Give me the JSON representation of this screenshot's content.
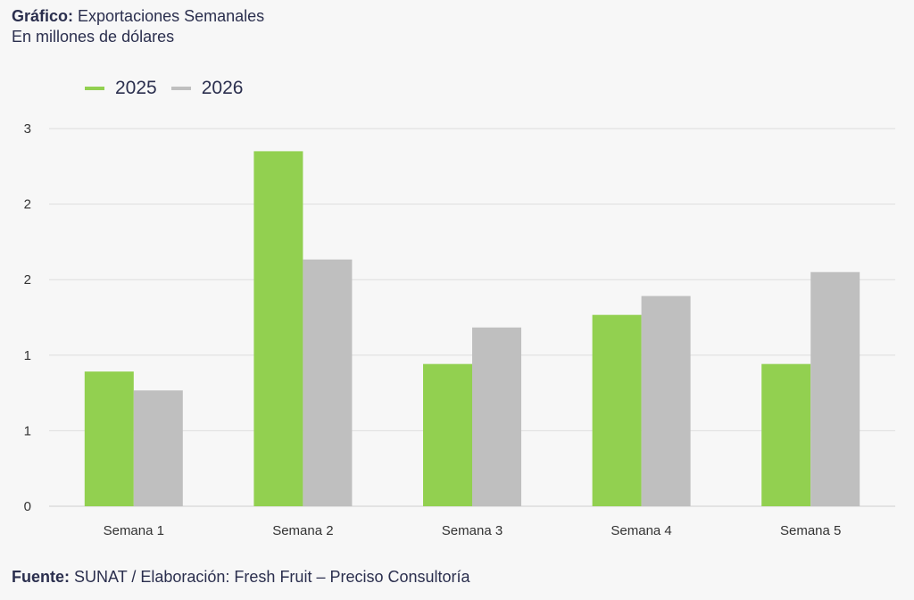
{
  "header": {
    "title_bold": "Gráfico:",
    "title": "Exportaciones Semanales",
    "subtitle": "En millones de dólares"
  },
  "footer": {
    "label_bold": "Fuente:",
    "text": "SUNAT / Elaboración: Fresh Fruit – Preciso Consultoría"
  },
  "chart_data": {
    "type": "bar",
    "title": "Exportaciones Semanales",
    "ylabel": "En millones de dólares",
    "categories": [
      "Semana 1",
      "Semana 2",
      "Semana 3",
      "Semana 4",
      "Semana 5"
    ],
    "series": [
      {
        "name": "2025",
        "color": "#92d050",
        "values": [
          1.07,
          2.82,
          1.13,
          1.52,
          1.13
        ]
      },
      {
        "name": "2026",
        "color": "#bfbfbf",
        "values": [
          0.92,
          1.96,
          1.42,
          1.67,
          1.86
        ]
      }
    ],
    "ylim": [
      0,
      3
    ],
    "yticks": [
      0,
      0.6,
      1.2,
      1.8,
      2.4,
      3
    ],
    "ytick_labels": [
      "0",
      "1",
      "1",
      "2",
      "2",
      "3"
    ],
    "grid": true,
    "legend": "top-left"
  }
}
